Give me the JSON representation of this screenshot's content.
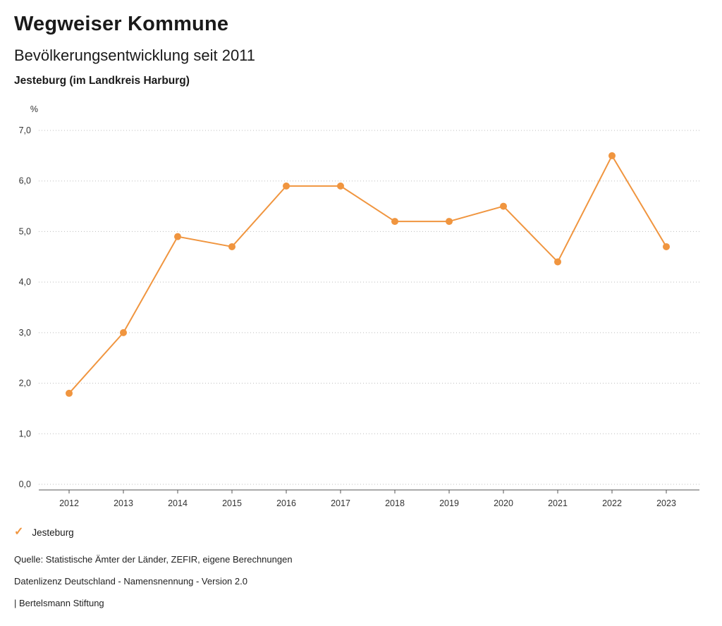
{
  "header": {
    "title": "Wegweiser Kommune",
    "subtitle": "Bevölkerungsentwicklung seit 2011",
    "location": "Jesteburg (im Landkreis Harburg)"
  },
  "chart_data": {
    "type": "line",
    "title": "Bevölkerungsentwicklung seit 2011 - Jesteburg (im Landkreis Harburg)",
    "categories": [
      "2012",
      "2013",
      "2014",
      "2015",
      "2016",
      "2017",
      "2018",
      "2019",
      "2020",
      "2021",
      "2022",
      "2023"
    ],
    "series": [
      {
        "name": "Jesteburg",
        "values": [
          1.8,
          3.0,
          4.9,
          4.7,
          5.9,
          5.9,
          5.2,
          5.2,
          5.5,
          4.4,
          6.5,
          4.7
        ]
      }
    ],
    "xlabel": "",
    "ylabel": "%",
    "ylim": [
      0,
      7
    ],
    "ytick_step": 1,
    "ytick_labels": [
      "0,0",
      "1,0",
      "2,0",
      "3,0",
      "4,0",
      "5,0",
      "6,0",
      "7,0"
    ],
    "grid": "horizontal-dotted",
    "legend_position": "bottom-left",
    "line_color": "#F0953F",
    "marker": "circle"
  },
  "legend": {
    "items": [
      {
        "label": "Jesteburg",
        "marker": "check",
        "color": "#F0953F"
      }
    ]
  },
  "footer": {
    "source": "Quelle: Statistische Ämter der Länder, ZEFIR, eigene Berechnungen",
    "license": "Datenlizenz Deutschland - Namensnennung - Version 2.0",
    "attribution": "| Bertelsmann Stiftung"
  }
}
